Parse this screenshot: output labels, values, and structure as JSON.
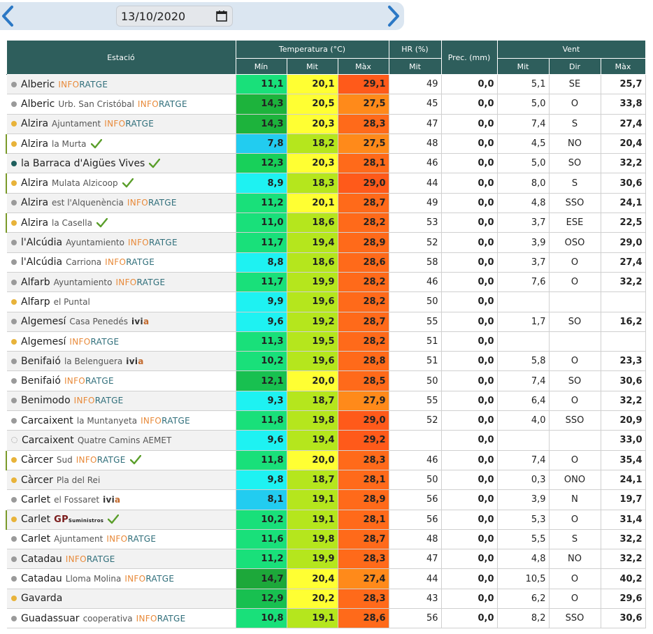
{
  "date": {
    "value": "13/10/2020"
  },
  "icons": {
    "prev": "chevron-left-icon",
    "next": "chevron-right-icon",
    "calendar": "calendar-icon",
    "check": "check-icon"
  },
  "colors": {
    "header_bg": "#2e5e5c",
    "dot_gray": "#9a9a9a",
    "dot_orange": "#e8b33a",
    "dot_teal": "#1d5e5c",
    "check": "#5a9e2a"
  },
  "header": {
    "station": "Estació",
    "temperature": "Temperatura (°C)",
    "hr": "HR (%)",
    "prec": "Prec. (mm)",
    "wind": "Vent",
    "t_min": "Mín",
    "t_mit": "Mit",
    "t_max": "Màx",
    "hr_mit": "Mit",
    "w_mit": "Mit",
    "w_dir": "Dir",
    "w_max": "Màx"
  },
  "rows": [
    {
      "city": "Alberic",
      "loc": "",
      "src": "INFORATGE",
      "dot": "gray",
      "check": false,
      "hl": false,
      "tmin": "11,1",
      "tmit": "20,1",
      "tmax": "29,1",
      "cmin": "#19e07a",
      "cmit": "#ffff33",
      "cmax": "#ff5a1a",
      "hr": "49",
      "prec": "0,0",
      "wmit": "5,1",
      "wdir": "SE",
      "wmax": "25,7"
    },
    {
      "city": "Alberic",
      "loc": "Urb. San Cristóbal",
      "src": "INFORATGE",
      "dot": "gray",
      "check": false,
      "hl": false,
      "tmin": "14,3",
      "tmit": "20,5",
      "tmax": "27,5",
      "cmin": "#1db33c",
      "cmit": "#ffff33",
      "cmax": "#ff8a1a",
      "hr": "45",
      "prec": "0,0",
      "wmit": "5,0",
      "wdir": "O",
      "wmax": "33,8"
    },
    {
      "city": "Alzira",
      "loc": "Ajuntament",
      "src": "INFORATGE",
      "dot": "orange",
      "check": false,
      "hl": false,
      "tmin": "14,3",
      "tmit": "20,3",
      "tmax": "28,3",
      "cmin": "#1db33c",
      "cmit": "#ffff33",
      "cmax": "#ff6a1a",
      "hr": "47",
      "prec": "0,0",
      "wmit": "7,4",
      "wdir": "S",
      "wmax": "27,4"
    },
    {
      "city": "Alzira",
      "loc": "la Murta",
      "src": "",
      "dot": "orange",
      "check": true,
      "hl": true,
      "tmin": "7,8",
      "tmit": "18,2",
      "tmax": "27,5",
      "cmin": "#22ccf0",
      "cmit": "#b5e61d",
      "cmax": "#ff8a1a",
      "hr": "48",
      "prec": "0,0",
      "wmit": "4,5",
      "wdir": "NO",
      "wmax": "20,4"
    },
    {
      "city": "la Barraca d'Aigües Vives",
      "loc": "",
      "src": "",
      "dot": "teal",
      "check": true,
      "hl": false,
      "tmin": "12,3",
      "tmit": "20,3",
      "tmax": "28,1",
      "cmin": "#18d05a",
      "cmit": "#ffff33",
      "cmax": "#ff6a1a",
      "hr": "46",
      "prec": "0,0",
      "wmit": "5,0",
      "wdir": "SO",
      "wmax": "32,2"
    },
    {
      "city": "Alzira",
      "loc": "Mulata Alzicoop",
      "src": "",
      "dot": "orange",
      "check": true,
      "hl": true,
      "tmin": "8,9",
      "tmit": "18,3",
      "tmax": "29,0",
      "cmin": "#1ef2f2",
      "cmit": "#b5e61d",
      "cmax": "#ff5a1a",
      "hr": "44",
      "prec": "0,0",
      "wmit": "8,0",
      "wdir": "S",
      "wmax": "30,6"
    },
    {
      "city": "Alzira",
      "loc": "est l'Alquenència",
      "src": "INFORATGE",
      "dot": "gray",
      "check": false,
      "hl": false,
      "tmin": "11,2",
      "tmit": "20,1",
      "tmax": "28,7",
      "cmin": "#19e07a",
      "cmit": "#ffff33",
      "cmax": "#ff6a1a",
      "hr": "49",
      "prec": "0,0",
      "wmit": "4,8",
      "wdir": "SSO",
      "wmax": "24,1"
    },
    {
      "city": "Alzira",
      "loc": "la Casella",
      "src": "",
      "dot": "orange",
      "check": true,
      "hl": true,
      "tmin": "11,0",
      "tmit": "18,6",
      "tmax": "28,2",
      "cmin": "#19e07a",
      "cmit": "#b5e61d",
      "cmax": "#ff6a1a",
      "hr": "53",
      "prec": "0,0",
      "wmit": "3,7",
      "wdir": "ESE",
      "wmax": "22,5"
    },
    {
      "city": "l'Alcúdia",
      "loc": "Ayuntamiento",
      "src": "INFORATGE",
      "dot": "gray",
      "check": false,
      "hl": false,
      "tmin": "11,7",
      "tmit": "19,4",
      "tmax": "28,9",
      "cmin": "#19e07a",
      "cmit": "#b5e61d",
      "cmax": "#ff6a1a",
      "hr": "52",
      "prec": "0,0",
      "wmit": "3,9",
      "wdir": "OSO",
      "wmax": "29,0"
    },
    {
      "city": "l'Alcúdia",
      "loc": "Carriona",
      "src": "INFORATGE",
      "dot": "gray",
      "check": false,
      "hl": false,
      "tmin": "8,8",
      "tmit": "18,6",
      "tmax": "28,6",
      "cmin": "#1ef2f2",
      "cmit": "#b5e61d",
      "cmax": "#ff6a1a",
      "hr": "58",
      "prec": "0,0",
      "wmit": "3,7",
      "wdir": "O",
      "wmax": "27,4"
    },
    {
      "city": "Alfarb",
      "loc": "Ayuntamiento",
      "src": "INFORATGE",
      "dot": "gray",
      "check": false,
      "hl": false,
      "tmin": "11,7",
      "tmit": "19,9",
      "tmax": "28,2",
      "cmin": "#19e07a",
      "cmit": "#b5e61d",
      "cmax": "#ff6a1a",
      "hr": "46",
      "prec": "0,0",
      "wmit": "7,6",
      "wdir": "O",
      "wmax": "32,2"
    },
    {
      "city": "Alfarp",
      "loc": "el Puntal",
      "src": "",
      "dot": "orange",
      "check": false,
      "hl": false,
      "tmin": "9,9",
      "tmit": "19,6",
      "tmax": "28,2",
      "cmin": "#1ef2f2",
      "cmit": "#b5e61d",
      "cmax": "#ff6a1a",
      "hr": "50",
      "prec": "0,0",
      "wmit": "",
      "wdir": "",
      "wmax": ""
    },
    {
      "city": "Algemesí",
      "loc": "Casa Penedés",
      "src": "ivia",
      "dot": "gray",
      "check": false,
      "hl": false,
      "tmin": "9,6",
      "tmit": "19,2",
      "tmax": "28,7",
      "cmin": "#1ef2f2",
      "cmit": "#b5e61d",
      "cmax": "#ff6a1a",
      "hr": "55",
      "prec": "0,0",
      "wmit": "1,7",
      "wdir": "SO",
      "wmax": "16,2"
    },
    {
      "city": "Algemesí",
      "loc": "",
      "src": "INFORATGE",
      "dot": "orange",
      "check": false,
      "hl": false,
      "tmin": "11,3",
      "tmit": "19,5",
      "tmax": "28,2",
      "cmin": "#19e07a",
      "cmit": "#b5e61d",
      "cmax": "#ff6a1a",
      "hr": "51",
      "prec": "0,0",
      "wmit": "",
      "wdir": "",
      "wmax": ""
    },
    {
      "city": "Benifaió",
      "loc": "la Belenguera",
      "src": "ivia",
      "dot": "gray",
      "check": false,
      "hl": false,
      "tmin": "10,2",
      "tmit": "19,6",
      "tmax": "28,8",
      "cmin": "#19e07a",
      "cmit": "#b5e61d",
      "cmax": "#ff6a1a",
      "hr": "51",
      "prec": "0,0",
      "wmit": "5,8",
      "wdir": "O",
      "wmax": "23,3"
    },
    {
      "city": "Benifaió",
      "loc": "",
      "src": "INFORATGE",
      "dot": "gray",
      "check": false,
      "hl": false,
      "tmin": "12,1",
      "tmit": "20,0",
      "tmax": "28,5",
      "cmin": "#18c050",
      "cmit": "#ffff33",
      "cmax": "#ff6a1a",
      "hr": "50",
      "prec": "0,0",
      "wmit": "7,4",
      "wdir": "SO",
      "wmax": "30,6"
    },
    {
      "city": "Benimodo",
      "loc": "",
      "src": "INFORATGE",
      "dot": "gray",
      "check": false,
      "hl": false,
      "tmin": "9,3",
      "tmit": "18,7",
      "tmax": "27,9",
      "cmin": "#1ef2f2",
      "cmit": "#b5e61d",
      "cmax": "#ff8a1a",
      "hr": "55",
      "prec": "0,0",
      "wmit": "6,4",
      "wdir": "O",
      "wmax": "32,2"
    },
    {
      "city": "Carcaixent",
      "loc": "la Muntanyeta",
      "src": "INFORATGE",
      "dot": "gray",
      "check": false,
      "hl": false,
      "tmin": "11,8",
      "tmit": "19,8",
      "tmax": "29,0",
      "cmin": "#19e07a",
      "cmit": "#b5e61d",
      "cmax": "#ff5a1a",
      "hr": "52",
      "prec": "0,0",
      "wmit": "4,0",
      "wdir": "SSO",
      "wmax": "20,9"
    },
    {
      "city": "Carcaixent",
      "loc": "Quatre Camins AEMET",
      "src": "",
      "dot": "empty",
      "check": false,
      "hl": false,
      "tmin": "9,6",
      "tmit": "19,4",
      "tmax": "29,2",
      "cmin": "#1ef2f2",
      "cmit": "#b5e61d",
      "cmax": "#ff5a1a",
      "hr": "",
      "prec": "0,0",
      "wmit": "",
      "wdir": "",
      "wmax": "33,0"
    },
    {
      "city": "Càrcer",
      "loc": "Sud",
      "src": "INFORATGE",
      "dot": "orange",
      "check": true,
      "hl": true,
      "tmin": "11,8",
      "tmit": "20,0",
      "tmax": "28,3",
      "cmin": "#19e07a",
      "cmit": "#ffff33",
      "cmax": "#ff6a1a",
      "hr": "46",
      "prec": "0,0",
      "wmit": "7,4",
      "wdir": "O",
      "wmax": "35,4"
    },
    {
      "city": "Càrcer",
      "loc": "Pla del Rei",
      "src": "",
      "dot": "orange",
      "check": false,
      "hl": false,
      "tmin": "9,8",
      "tmit": "18,7",
      "tmax": "28,1",
      "cmin": "#1ef2f2",
      "cmit": "#b5e61d",
      "cmax": "#ff6a1a",
      "hr": "50",
      "prec": "0,0",
      "wmit": "0,3",
      "wdir": "ONO",
      "wmax": "24,1"
    },
    {
      "city": "Carlet",
      "loc": "el Fossaret",
      "src": "ivia",
      "dot": "gray",
      "check": false,
      "hl": false,
      "tmin": "8,1",
      "tmit": "19,1",
      "tmax": "28,9",
      "cmin": "#22ccf0",
      "cmit": "#b5e61d",
      "cmax": "#ff6a1a",
      "hr": "56",
      "prec": "0,0",
      "wmit": "3,9",
      "wdir": "N",
      "wmax": "19,7"
    },
    {
      "city": "Carlet",
      "loc": "",
      "src": "GP",
      "dot": "orange",
      "check": true,
      "hl": true,
      "tmin": "10,2",
      "tmit": "19,1",
      "tmax": "28,1",
      "cmin": "#19e07a",
      "cmit": "#b5e61d",
      "cmax": "#ff6a1a",
      "hr": "56",
      "prec": "0,0",
      "wmit": "5,3",
      "wdir": "O",
      "wmax": "31,4"
    },
    {
      "city": "Carlet",
      "loc": "Ajuntament",
      "src": "INFORATGE",
      "dot": "gray",
      "check": false,
      "hl": false,
      "tmin": "11,6",
      "tmit": "19,8",
      "tmax": "28,7",
      "cmin": "#19e07a",
      "cmit": "#b5e61d",
      "cmax": "#ff6a1a",
      "hr": "48",
      "prec": "0,0",
      "wmit": "5,5",
      "wdir": "S",
      "wmax": "32,2"
    },
    {
      "city": "Catadau",
      "loc": "",
      "src": "INFORATGE",
      "dot": "gray",
      "check": false,
      "hl": false,
      "tmin": "11,2",
      "tmit": "19,9",
      "tmax": "28,3",
      "cmin": "#19e07a",
      "cmit": "#b5e61d",
      "cmax": "#ff6a1a",
      "hr": "47",
      "prec": "0,0",
      "wmit": "4,8",
      "wdir": "NO",
      "wmax": "32,2"
    },
    {
      "city": "Catadau",
      "loc": "Lloma Molina",
      "src": "INFORATGE",
      "dot": "gray",
      "check": false,
      "hl": false,
      "tmin": "14,7",
      "tmit": "20,4",
      "tmax": "27,4",
      "cmin": "#1da83a",
      "cmit": "#ffff33",
      "cmax": "#ff8a1a",
      "hr": "44",
      "prec": "0,0",
      "wmit": "10,5",
      "wdir": "O",
      "wmax": "40,2"
    },
    {
      "city": "Gavarda",
      "loc": "",
      "src": "",
      "dot": "orange",
      "check": false,
      "hl": false,
      "tmin": "12,9",
      "tmit": "20,2",
      "tmax": "28,3",
      "cmin": "#18c050",
      "cmit": "#ffff33",
      "cmax": "#ff6a1a",
      "hr": "43",
      "prec": "0,0",
      "wmit": "6,2",
      "wdir": "O",
      "wmax": "29,6"
    },
    {
      "city": "Guadassuar",
      "loc": "cooperativa",
      "src": "INFORATGE",
      "dot": "gray",
      "check": false,
      "hl": false,
      "tmin": "10,8",
      "tmit": "19,1",
      "tmax": "28,6",
      "cmin": "#19e07a",
      "cmit": "#b5e61d",
      "cmax": "#ff6a1a",
      "hr": "56",
      "prec": "0,0",
      "wmit": "8,2",
      "wdir": "SSO",
      "wmax": "30,6"
    }
  ]
}
